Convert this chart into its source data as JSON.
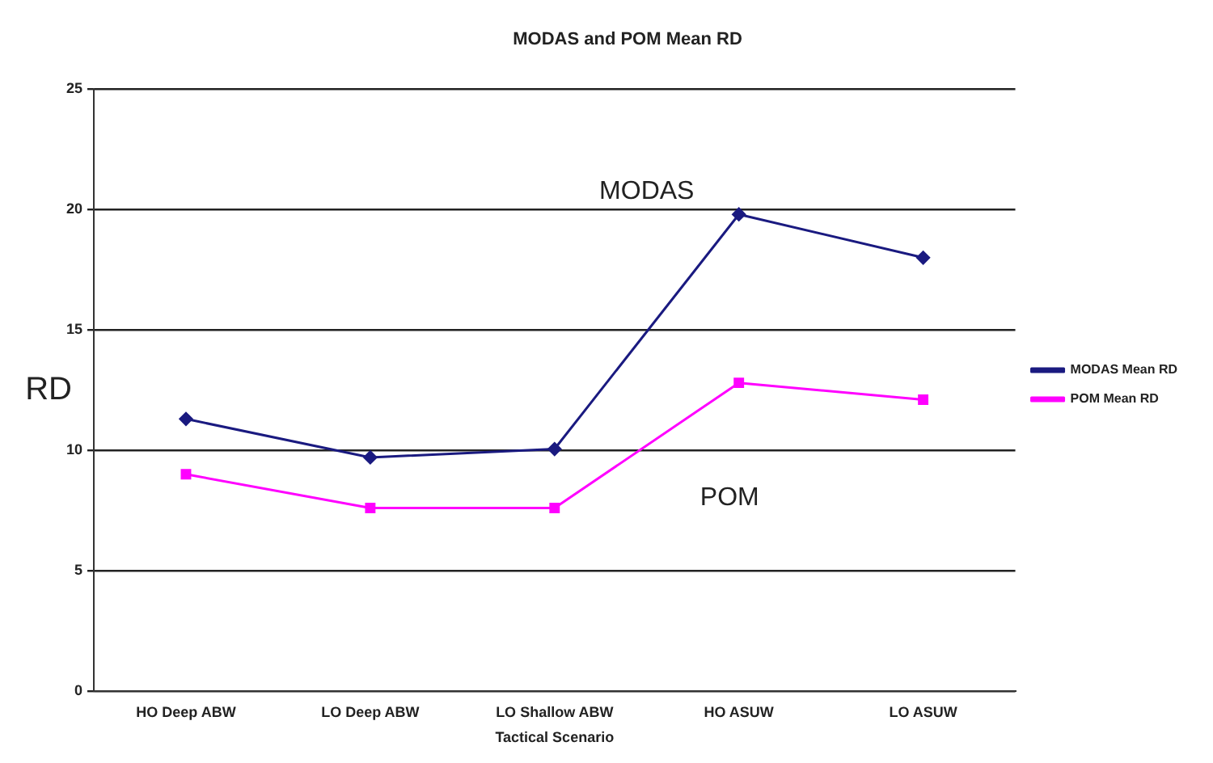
{
  "chart_data": {
    "type": "line",
    "title": "MODAS and POM Mean RD",
    "xlabel": "Tactical Scenario",
    "ylabel": "RD",
    "categories": [
      "HO Deep ABW",
      "LO Deep ABW",
      "LO Shallow ABW",
      "HO ASUW",
      "LO ASUW"
    ],
    "series": [
      {
        "name": "MODAS Mean RD",
        "color": "#1a1a80",
        "values": [
          11.3,
          9.7,
          10.05,
          19.8,
          18.0
        ],
        "marker": "diamond"
      },
      {
        "name": "POM Mean RD",
        "color": "#ff00ff",
        "values": [
          9.0,
          7.6,
          7.6,
          12.8,
          12.1
        ],
        "marker": "square"
      }
    ],
    "ylim": [
      0,
      25
    ],
    "yticks": [
      0,
      5,
      10,
      15,
      20,
      25
    ],
    "grid": "y",
    "legend": "right",
    "annotations": [
      "MODAS",
      "POM"
    ]
  }
}
